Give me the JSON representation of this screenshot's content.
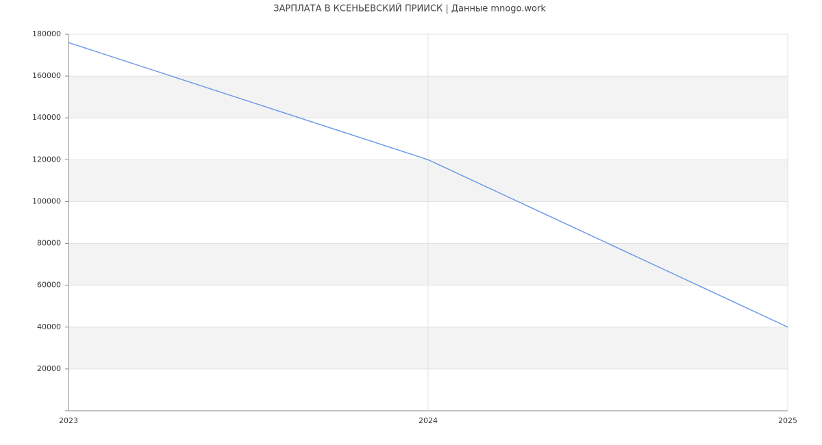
{
  "chart_data": {
    "type": "line",
    "title": "ЗАРПЛАТА В КСЕНЬЕВСКИЙ ПРИИСК | Данные mnogo.work",
    "x": [
      2023,
      2024,
      2025
    ],
    "values": [
      176000,
      120000,
      40000
    ],
    "color": "#6d9be8",
    "xlim": [
      2023,
      2025
    ],
    "xticks": [
      2023,
      2024,
      2025
    ],
    "ylim": [
      0,
      180000
    ],
    "yticks": [
      20000,
      40000,
      60000,
      80000,
      100000,
      120000,
      140000,
      160000,
      180000
    ],
    "grid": true
  }
}
